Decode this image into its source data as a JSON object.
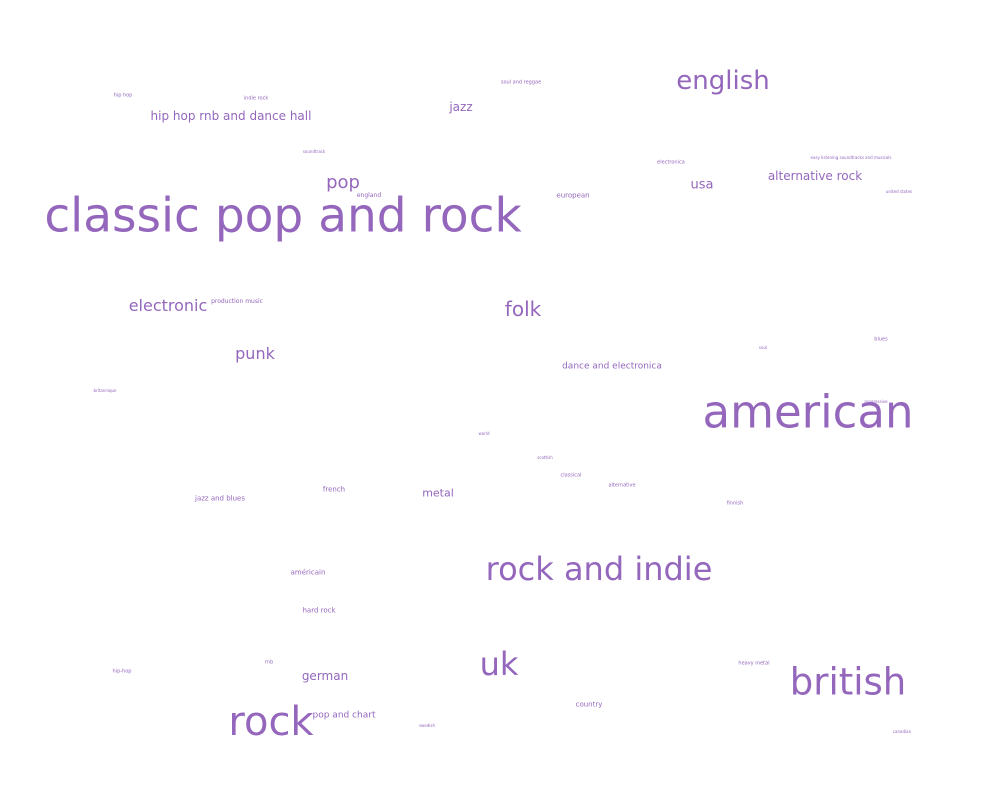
{
  "chart_data": {
    "type": "wordcloud",
    "title": "",
    "color": "#9467bd",
    "words": [
      {
        "text": "classic pop and rock",
        "weight": 100
      },
      {
        "text": "american",
        "weight": 92
      },
      {
        "text": "rock",
        "weight": 82
      },
      {
        "text": "british",
        "weight": 76
      },
      {
        "text": "rock and indie",
        "weight": 66
      },
      {
        "text": "uk",
        "weight": 66
      },
      {
        "text": "english",
        "weight": 55
      },
      {
        "text": "folk",
        "weight": 40
      },
      {
        "text": "pop",
        "weight": 36
      },
      {
        "text": "electronic",
        "weight": 32
      },
      {
        "text": "punk",
        "weight": 31
      },
      {
        "text": "hip hop rnb and dance hall",
        "weight": 24
      },
      {
        "text": "alternative rock",
        "weight": 24
      },
      {
        "text": "usa",
        "weight": 26
      },
      {
        "text": "jazz",
        "weight": 22
      },
      {
        "text": "german",
        "weight": 22
      },
      {
        "text": "metal",
        "weight": 20
      },
      {
        "text": "dance and electronica",
        "weight": 17
      },
      {
        "text": "pop and chart",
        "weight": 17
      },
      {
        "text": "european",
        "weight": 13
      },
      {
        "text": "américain",
        "weight": 12
      },
      {
        "text": "hard rock",
        "weight": 12
      },
      {
        "text": "country",
        "weight": 12
      },
      {
        "text": "french",
        "weight": 12
      },
      {
        "text": "jazz and blues",
        "weight": 12
      },
      {
        "text": "production music",
        "weight": 10
      },
      {
        "text": "england",
        "weight": 10
      },
      {
        "text": "hip hop",
        "weight": 9
      },
      {
        "text": "indie rock",
        "weight": 9
      },
      {
        "text": "soul and reggae",
        "weight": 9
      },
      {
        "text": "electronica",
        "weight": 9
      },
      {
        "text": "classical",
        "weight": 9
      },
      {
        "text": "alternative",
        "weight": 8
      },
      {
        "text": "finnish",
        "weight": 8
      },
      {
        "text": "hip-hop",
        "weight": 8
      },
      {
        "text": "rnb",
        "weight": 8
      },
      {
        "text": "heavy metal",
        "weight": 8
      },
      {
        "text": "blues",
        "weight": 8
      },
      {
        "text": "soundtrack",
        "weight": 7
      },
      {
        "text": "easy listening soundtracks and musicals",
        "weight": 7
      },
      {
        "text": "united states",
        "weight": 7
      },
      {
        "text": "swedish",
        "weight": 7
      },
      {
        "text": "canadian",
        "weight": 7
      },
      {
        "text": "britannique",
        "weight": 7
      },
      {
        "text": "soul",
        "weight": 7
      },
      {
        "text": "world",
        "weight": 6
      },
      {
        "text": "scottish",
        "weight": 6
      },
      {
        "text": "progressive",
        "weight": 6
      }
    ]
  }
}
